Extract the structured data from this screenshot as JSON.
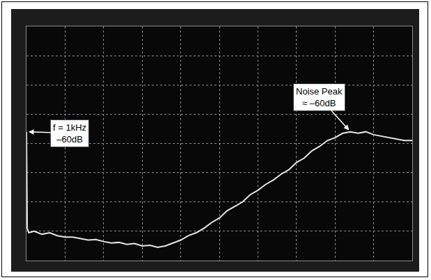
{
  "chart_data": {
    "type": "line",
    "x": [
      0,
      0.02,
      0.06,
      0.2,
      0.4,
      0.6,
      0.8,
      1.0,
      1.2,
      1.4,
      1.6,
      1.8,
      2.0,
      2.2,
      2.4,
      2.6,
      2.8,
      3.0,
      3.2,
      3.4,
      3.6,
      3.8,
      4.0,
      4.2,
      4.4,
      4.6,
      4.8,
      5.0,
      5.2,
      5.4,
      5.6,
      5.8,
      6.0,
      6.2,
      6.4,
      6.6,
      6.8,
      7.0,
      7.2,
      7.4,
      7.6,
      7.8,
      8.0,
      8.2,
      8.4,
      8.6,
      8.8,
      9.0,
      9.2,
      9.4,
      9.6,
      9.8,
      10.0
    ],
    "values": [
      4.4,
      1.1,
      0.95,
      1.0,
      0.9,
      0.95,
      0.85,
      0.8,
      0.8,
      0.75,
      0.7,
      0.72,
      0.65,
      0.6,
      0.62,
      0.55,
      0.58,
      0.5,
      0.52,
      0.45,
      0.5,
      0.6,
      0.7,
      0.85,
      0.95,
      1.1,
      1.3,
      1.45,
      1.7,
      1.85,
      2.0,
      2.25,
      2.4,
      2.6,
      2.75,
      2.95,
      3.1,
      3.35,
      3.5,
      3.75,
      3.9,
      4.1,
      4.2,
      4.35,
      4.4,
      4.35,
      4.4,
      4.3,
      4.25,
      4.2,
      4.15,
      4.1,
      4.1
    ],
    "color": "#e6e6e6",
    "line_style": "solid",
    "annotations": [
      {
        "text": "f = 1kHz\n–60dB",
        "x": 0,
        "y": 4.4
      },
      {
        "text": "Noise Peak\n≈ –60dB",
        "x": 8.4,
        "y": 4.4
      }
    ],
    "xlim": [
      0,
      10
    ],
    "ylim": [
      0,
      8
    ],
    "xticks": [
      0,
      1,
      2,
      3,
      4,
      5,
      6,
      7,
      8,
      9,
      10
    ],
    "yticks": [
      0,
      1,
      2,
      3,
      4,
      5,
      6,
      7,
      8
    ],
    "grid": true,
    "tick_labels": false
  }
}
